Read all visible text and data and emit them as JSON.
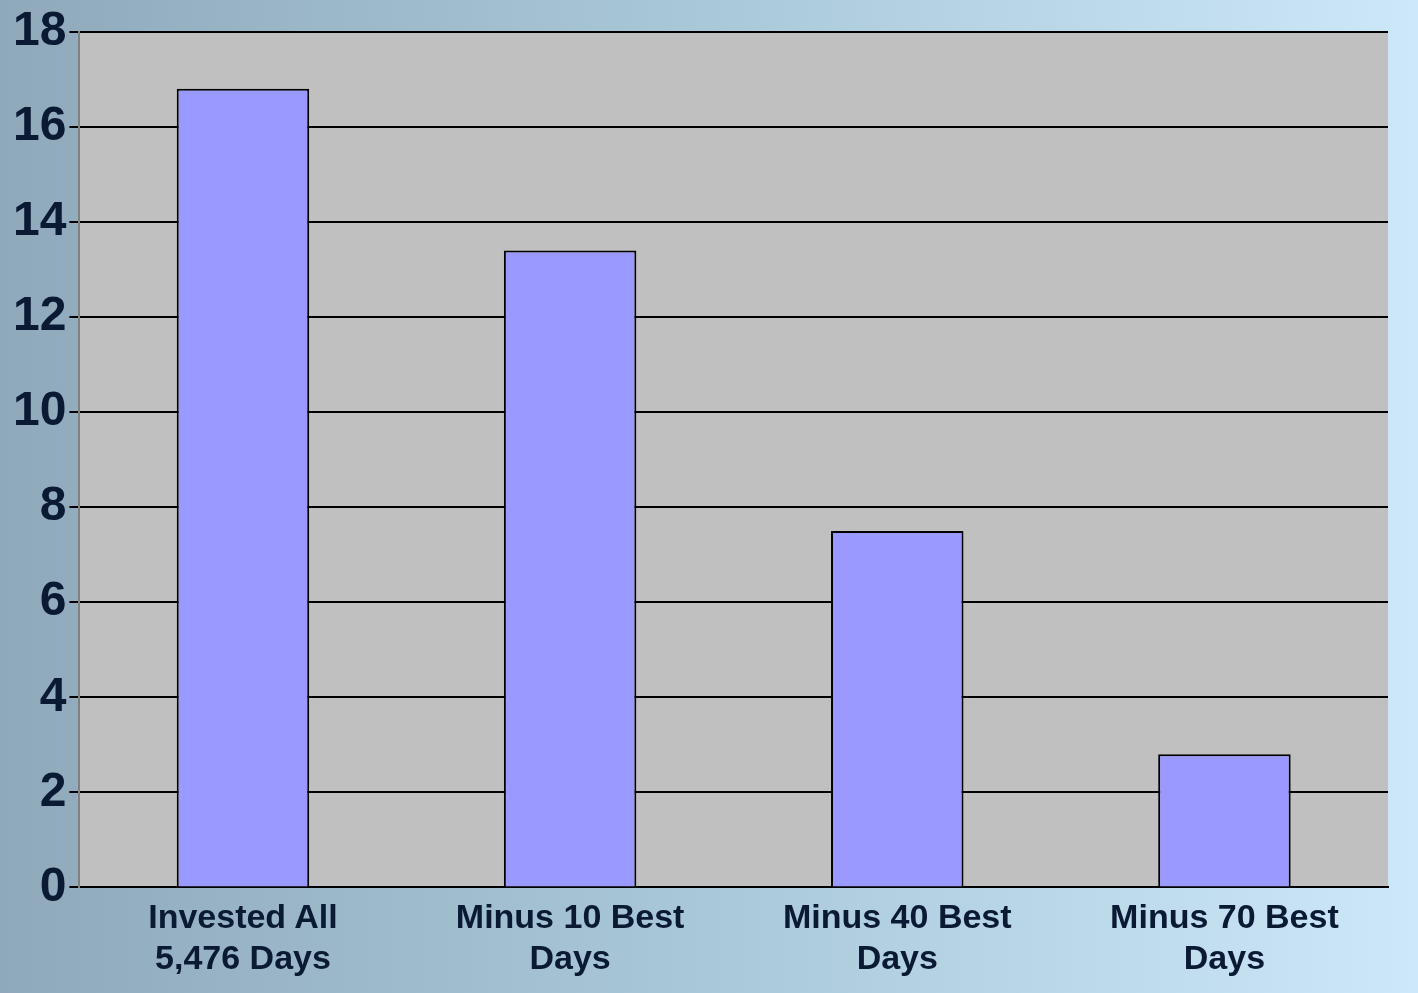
{
  "chart_data": {
    "type": "bar",
    "categories": [
      "Invested All 5,476 Days",
      "Minus 10 Best Days",
      "Minus 40 Best Days",
      "Minus 70 Best Days"
    ],
    "values": [
      16.8,
      13.4,
      7.5,
      2.8
    ],
    "color": "#9999ff",
    "ylim": [
      0,
      18
    ],
    "yticks": [
      0,
      2,
      4,
      6,
      8,
      10,
      12,
      14,
      16,
      18
    ],
    "grid": "y",
    "legend": false
  }
}
